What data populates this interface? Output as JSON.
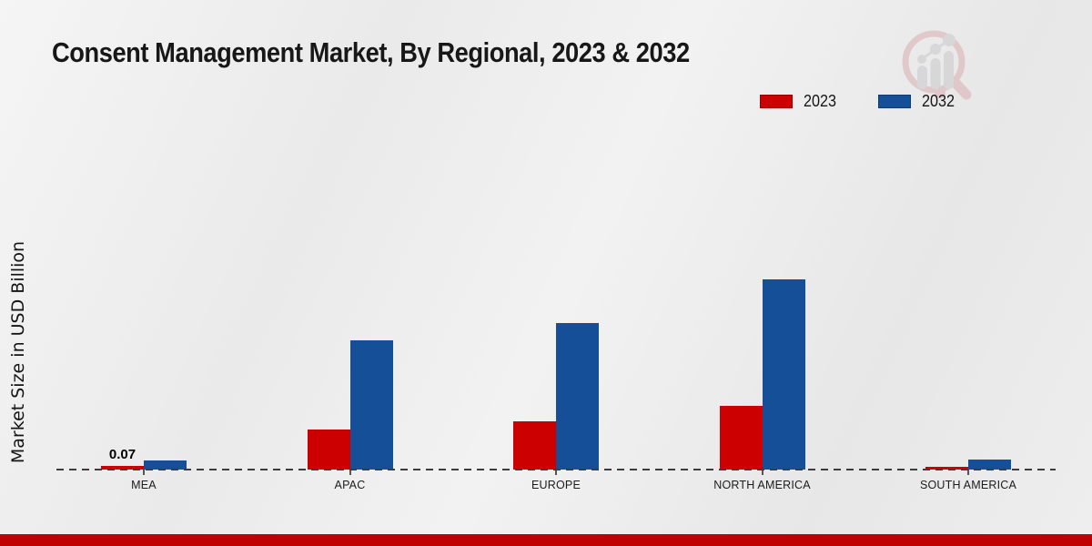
{
  "title": "Consent Management Market, By Regional, 2023 & 2032",
  "y_axis_label": "Market Size in USD Billion",
  "legend": {
    "items": [
      {
        "label": "2023",
        "color": "#cc0000"
      },
      {
        "label": "2032",
        "color": "#154f98"
      }
    ]
  },
  "chart_data": {
    "type": "bar",
    "title": "Consent Management Market, By Regional, 2023 & 2032",
    "ylabel": "Market Size in USD Billion",
    "unit": "USD Billion",
    "categories": [
      "MEA",
      "APAC",
      "EUROPE",
      "NORTH AMERICA",
      "SOUTH AMERICA"
    ],
    "series": [
      {
        "name": "2023",
        "color": "#cc0000",
        "values": [
          0.07,
          0.77,
          0.93,
          1.23,
          0.05
        ]
      },
      {
        "name": "2032",
        "color": "#154f98",
        "values": [
          0.18,
          2.49,
          2.82,
          3.67,
          0.19
        ]
      }
    ],
    "data_labels": [
      {
        "category": "MEA",
        "series": "2023",
        "text": "0.07"
      }
    ],
    "baseline_value": 0,
    "grid": false,
    "legend_position": "top-right",
    "axis_line_style": "dashed"
  },
  "branding": {
    "logo_icon": "magnifier-bar-chart-icon",
    "footer_bar_color": "#c00000"
  }
}
